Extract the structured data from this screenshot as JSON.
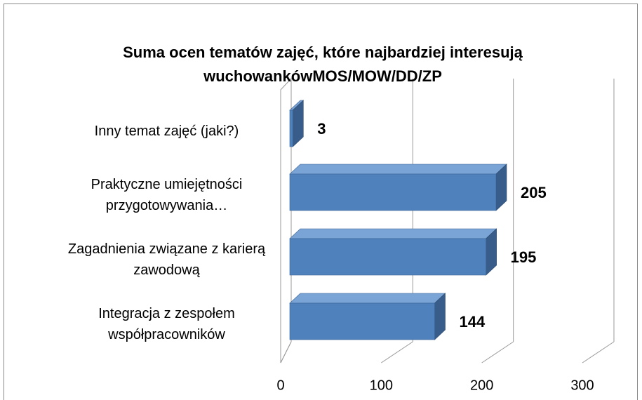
{
  "chart_data": {
    "type": "bar3d_horizontal",
    "title": "Suma ocen tematów zajęć, które najbardziej interesują wuchowankówMOS/MOW/DD/ZP",
    "categories": [
      "Inny temat zajęć (jaki?)",
      "Praktyczne umiejętności przygotowywania…",
      "Zagadnienia związane z karierą zawodową",
      "Integracja z zespołem współpracowników"
    ],
    "values": [
      3,
      205,
      195,
      144
    ],
    "color": "#4f81bd",
    "xlim": [
      0,
      300
    ],
    "xticks": [
      0,
      100,
      200,
      300
    ],
    "grid": true
  }
}
